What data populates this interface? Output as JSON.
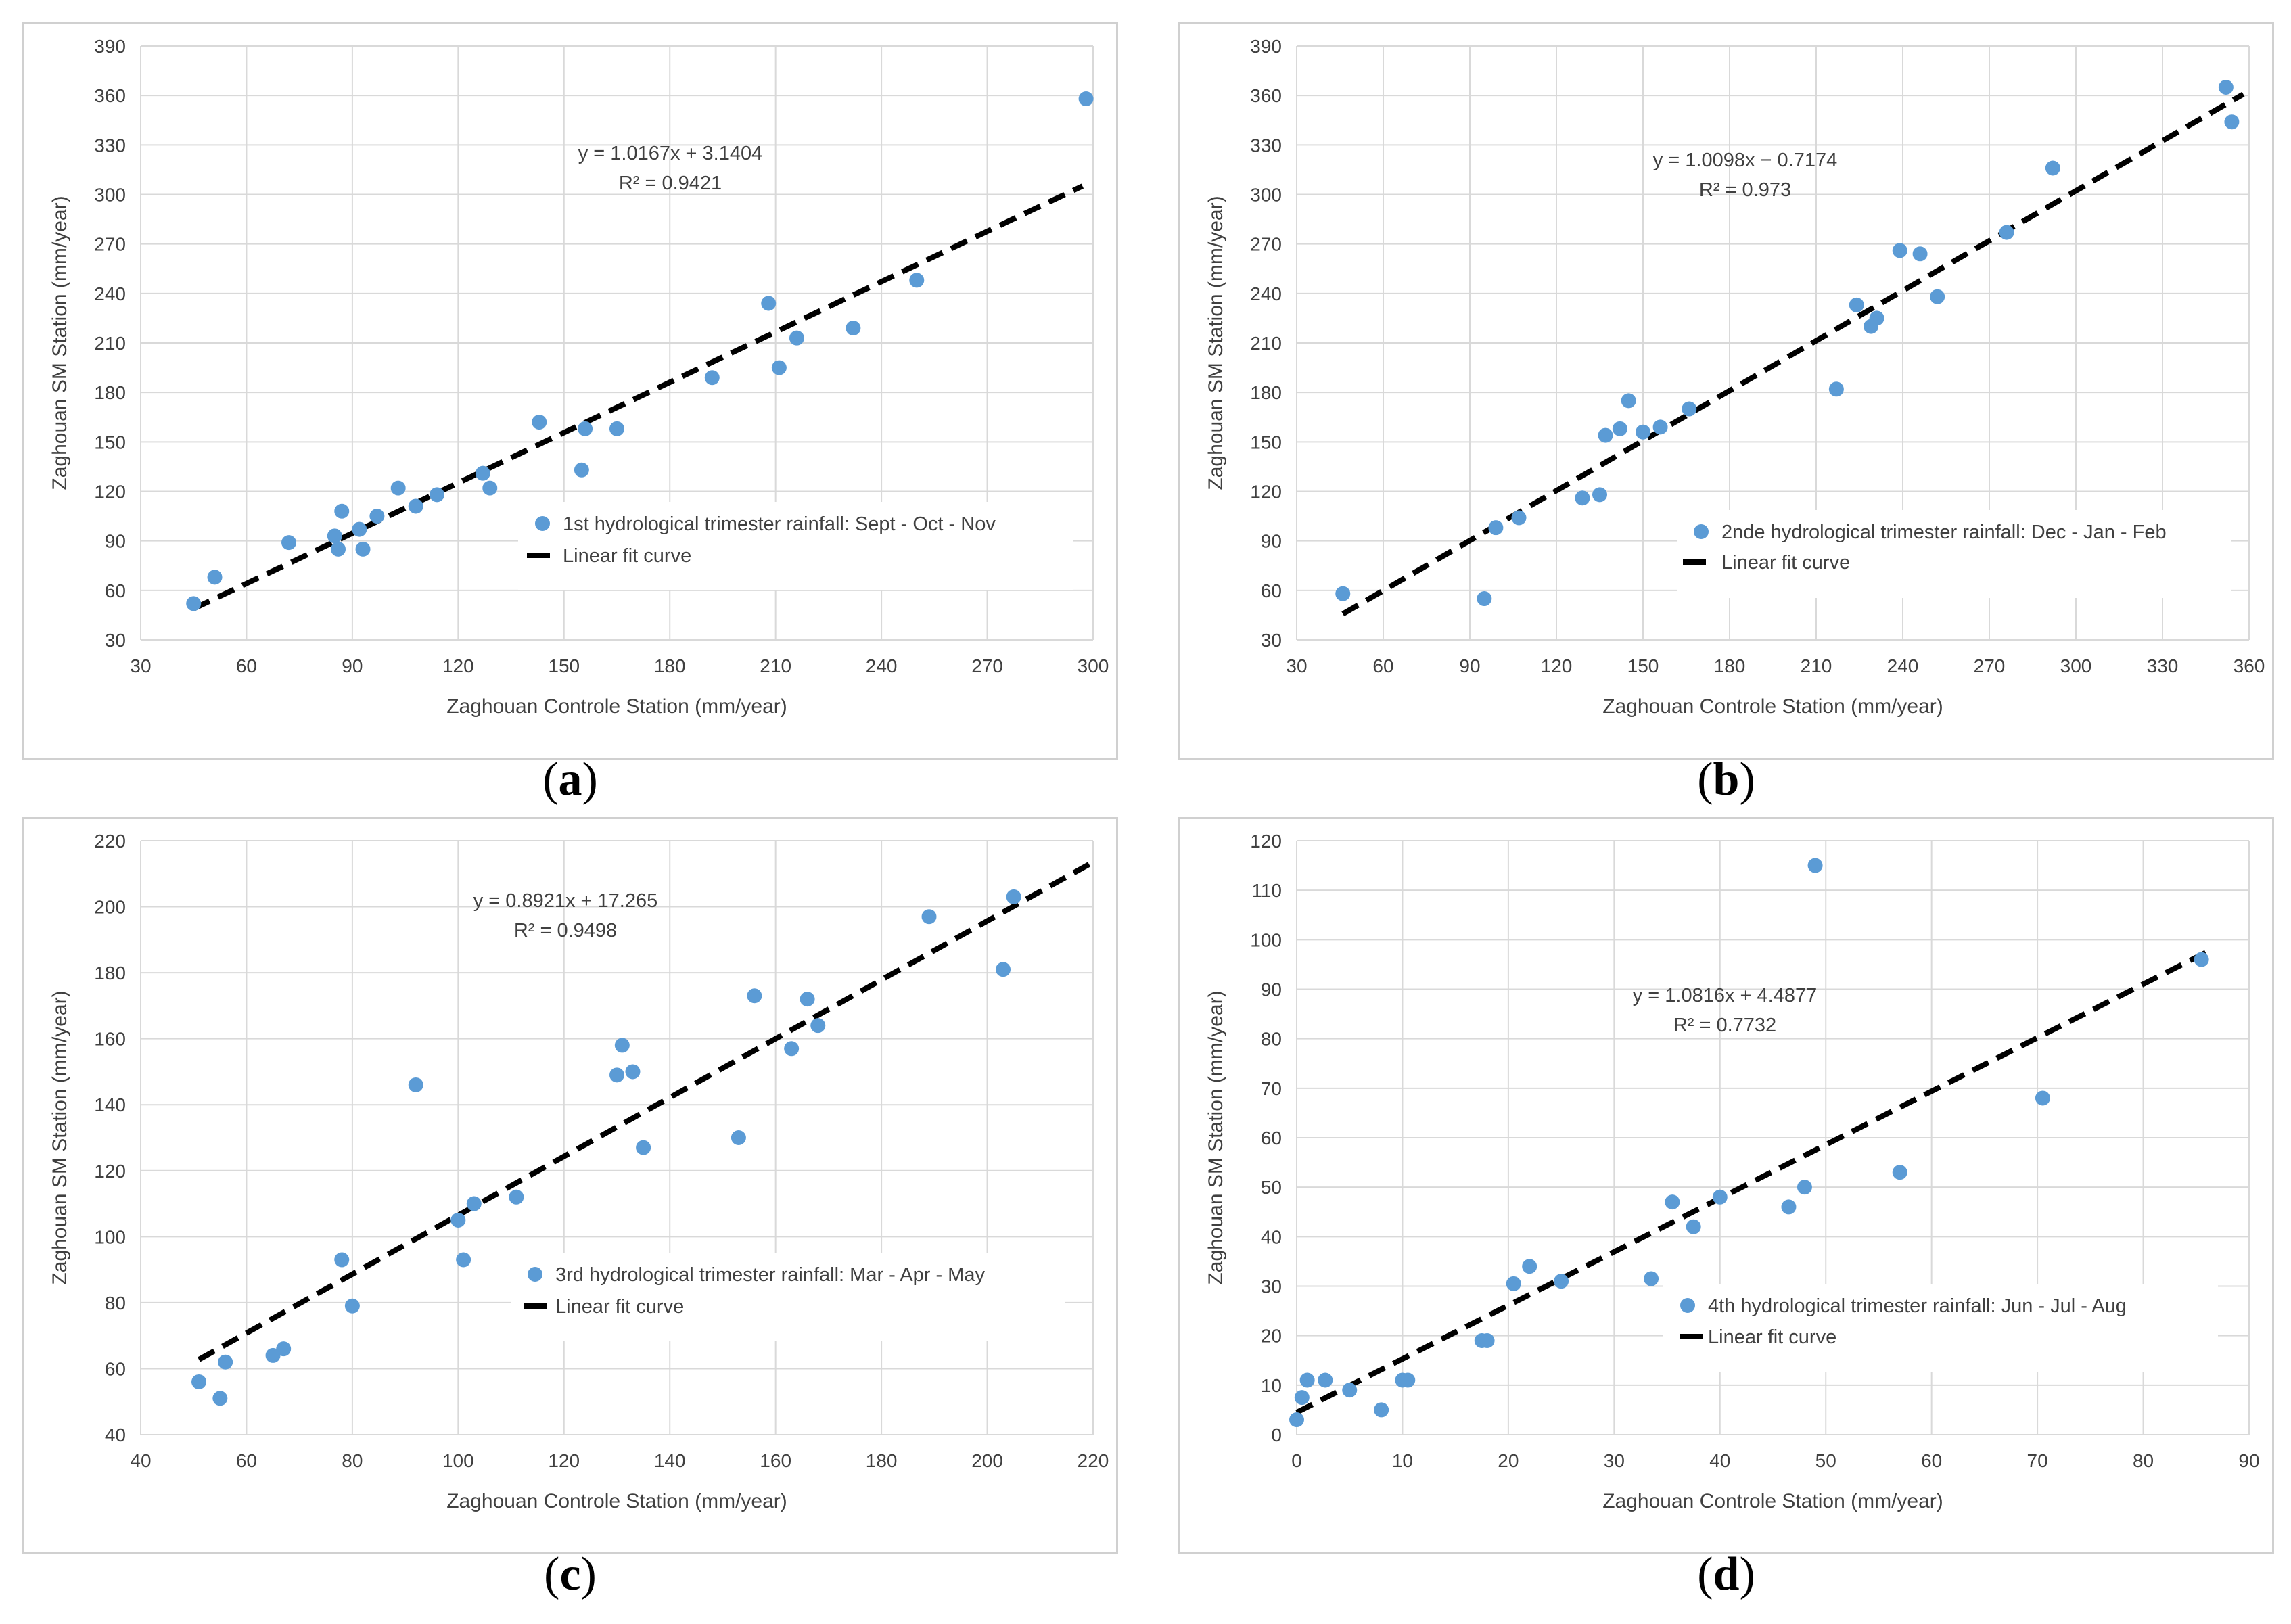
{
  "chart_data": [
    {
      "type": "scatter",
      "caption": "a",
      "xlabel": "Zaghouan Controle Station (mm/year)",
      "ylabel": "Zaghouan SM Station (mm/year)",
      "xlim": [
        30,
        300
      ],
      "ylim": [
        30,
        390
      ],
      "xticks": [
        30,
        60,
        90,
        120,
        150,
        180,
        210,
        240,
        270,
        300
      ],
      "yticks": [
        30,
        60,
        90,
        120,
        150,
        180,
        210,
        240,
        270,
        300,
        330,
        360,
        390
      ],
      "grid": true,
      "equation": "y = 1.0167x + 3.1404",
      "r2": "R² = 0.9421",
      "fit": {
        "slope": 1.0167,
        "intercept": 3.1404,
        "x_range": [
          45,
          297
        ]
      },
      "legend": {
        "points": "1st hydrological trimester rainfall: Sept - Oct - Nov",
        "line": "Linear fit curve"
      },
      "points": [
        [
          45,
          52
        ],
        [
          51,
          68
        ],
        [
          72,
          89
        ],
        [
          85,
          93
        ],
        [
          86,
          85
        ],
        [
          87,
          108
        ],
        [
          93,
          85
        ],
        [
          92,
          97
        ],
        [
          97,
          105
        ],
        [
          103,
          122
        ],
        [
          108,
          111
        ],
        [
          114,
          118
        ],
        [
          127,
          131
        ],
        [
          129,
          122
        ],
        [
          143,
          162
        ],
        [
          155,
          133
        ],
        [
          156,
          158
        ],
        [
          165,
          158
        ],
        [
          192,
          189
        ],
        [
          208,
          234
        ],
        [
          211,
          195
        ],
        [
          216,
          213
        ],
        [
          232,
          219
        ],
        [
          250,
          248
        ],
        [
          298,
          358
        ]
      ]
    },
    {
      "type": "scatter",
      "caption": "b",
      "xlabel": "Zaghouan Controle Station (mm/year)",
      "ylabel": "Zaghouan SM Station (mm/year)",
      "xlim": [
        30,
        360
      ],
      "ylim": [
        30,
        390
      ],
      "xticks": [
        30,
        60,
        90,
        120,
        150,
        180,
        210,
        240,
        270,
        300,
        330,
        360
      ],
      "yticks": [
        30,
        60,
        90,
        120,
        150,
        180,
        210,
        240,
        270,
        300,
        330,
        360,
        390
      ],
      "grid": true,
      "equation": "y = 1.0098x − 0.7174",
      "r2": "R² = 0.973",
      "fit": {
        "slope": 1.0098,
        "intercept": -0.7174,
        "x_range": [
          46,
          358
        ]
      },
      "legend": {
        "points": "2nde hydrological trimester rainfall: Dec - Jan - Feb",
        "line": "Linear fit curve"
      },
      "points": [
        [
          46,
          58
        ],
        [
          95,
          55
        ],
        [
          99,
          98
        ],
        [
          107,
          104
        ],
        [
          129,
          116
        ],
        [
          135,
          118
        ],
        [
          137,
          154
        ],
        [
          142,
          158
        ],
        [
          145,
          175
        ],
        [
          150,
          156
        ],
        [
          156,
          159
        ],
        [
          166,
          170
        ],
        [
          217,
          182
        ],
        [
          224,
          233
        ],
        [
          229,
          220
        ],
        [
          231,
          225
        ],
        [
          239,
          266
        ],
        [
          246,
          264
        ],
        [
          252,
          238
        ],
        [
          276,
          277
        ],
        [
          292,
          316
        ],
        [
          352,
          365
        ],
        [
          354,
          344
        ]
      ]
    },
    {
      "type": "scatter",
      "caption": "c",
      "xlabel": "Zaghouan Controle Station (mm/year)",
      "ylabel": "Zaghouan SM Station (mm/year)",
      "xlim": [
        40,
        220
      ],
      "ylim": [
        40,
        220
      ],
      "xticks": [
        40,
        60,
        80,
        100,
        120,
        140,
        160,
        180,
        200,
        220
      ],
      "yticks": [
        40,
        60,
        80,
        100,
        120,
        140,
        160,
        180,
        200,
        220
      ],
      "grid": true,
      "equation": "y = 0.8921x + 17.265",
      "r2": "R² = 0.9498",
      "fit": {
        "slope": 0.8921,
        "intercept": 17.265,
        "x_range": [
          51,
          220
        ]
      },
      "legend": {
        "points": "3rd hydrological trimester rainfall: Mar - Apr - May",
        "line": "Linear fit curve"
      },
      "points": [
        [
          51,
          56
        ],
        [
          55,
          51
        ],
        [
          56,
          62
        ],
        [
          65,
          64
        ],
        [
          67,
          66
        ],
        [
          78,
          93
        ],
        [
          80,
          79
        ],
        [
          92,
          146
        ],
        [
          100,
          105
        ],
        [
          101,
          93
        ],
        [
          103,
          110
        ],
        [
          111,
          112
        ],
        [
          130,
          149
        ],
        [
          131,
          158
        ],
        [
          133,
          150
        ],
        [
          135,
          127
        ],
        [
          153,
          130
        ],
        [
          156,
          173
        ],
        [
          163,
          157
        ],
        [
          166,
          172
        ],
        [
          168,
          164
        ],
        [
          189,
          197
        ],
        [
          203,
          181
        ],
        [
          205,
          203
        ]
      ]
    },
    {
      "type": "scatter",
      "caption": "d",
      "xlabel": "Zaghouan Controle Station (mm/year)",
      "ylabel": "Zaghouan SM Station (mm/year)",
      "xlim": [
        0,
        90
      ],
      "ylim": [
        0,
        120
      ],
      "xticks": [
        0,
        10,
        20,
        30,
        40,
        50,
        60,
        70,
        80,
        90
      ],
      "yticks": [
        0,
        10,
        20,
        30,
        40,
        50,
        60,
        70,
        80,
        90,
        100,
        110,
        120
      ],
      "grid": true,
      "equation": "y = 1.0816x + 4.4877",
      "r2": "R² = 0.7732",
      "fit": {
        "slope": 1.0816,
        "intercept": 4.4877,
        "x_range": [
          0,
          86
        ]
      },
      "legend": {
        "points": "4th hydrological trimester rainfall: Jun - Jul - Aug",
        "line": "Linear fit curve"
      },
      "points": [
        [
          0,
          3
        ],
        [
          0.5,
          7.5
        ],
        [
          1,
          11
        ],
        [
          2.7,
          11
        ],
        [
          5,
          9
        ],
        [
          8,
          5
        ],
        [
          10,
          11
        ],
        [
          10.5,
          11
        ],
        [
          17.5,
          19
        ],
        [
          18,
          19
        ],
        [
          20.5,
          30.5
        ],
        [
          22,
          34
        ],
        [
          25,
          31
        ],
        [
          33.5,
          31.5
        ],
        [
          35.5,
          47
        ],
        [
          37.5,
          42
        ],
        [
          40,
          48
        ],
        [
          46.5,
          46
        ],
        [
          48,
          50
        ],
        [
          49,
          115
        ],
        [
          57,
          53
        ],
        [
          70.5,
          68
        ],
        [
          85.5,
          96
        ]
      ]
    }
  ]
}
